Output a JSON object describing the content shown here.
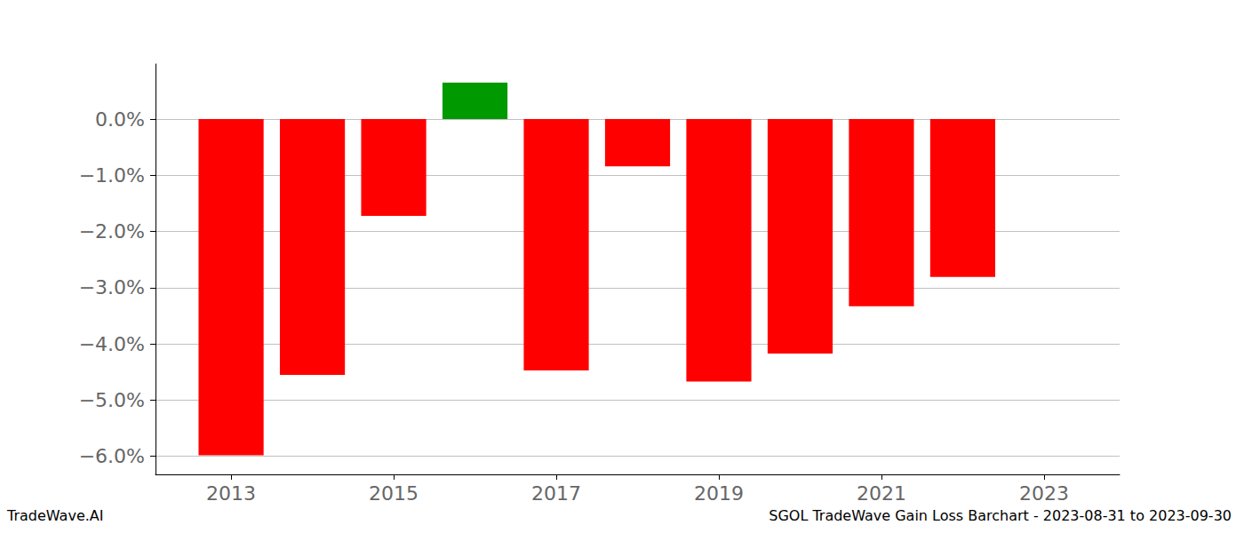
{
  "chart_data": {
    "type": "bar",
    "title": "SGOL TradeWave Gain Loss Barchart - 2023-08-31 to 2023-09-30",
    "annotations": [
      "TradeWave.AI"
    ],
    "x": [
      2013,
      2014,
      2015,
      2016,
      2017,
      2018,
      2019,
      2020,
      2021,
      2022
    ],
    "values": [
      -5.98,
      -4.55,
      -1.72,
      0.65,
      -4.47,
      -0.84,
      -4.67,
      -4.17,
      -3.33,
      -2.81
    ],
    "colors": [
      "#ff0000",
      "#ff0000",
      "#ff0000",
      "#009900",
      "#ff0000",
      "#ff0000",
      "#ff0000",
      "#ff0000",
      "#ff0000",
      "#ff0000"
    ],
    "xlim": [
      2012.07,
      2023.93
    ],
    "xticks": [
      2013,
      2015,
      2017,
      2019,
      2021,
      2023
    ],
    "ylim": [
      -6.32,
      0.98
    ],
    "yticks": [
      {
        "value": 0,
        "label": "0.0%"
      },
      {
        "value": -1,
        "label": "−1.0%"
      },
      {
        "value": -2,
        "label": "−2.0%"
      },
      {
        "value": -3,
        "label": "−3.0%"
      },
      {
        "value": -4,
        "label": "−4.0%"
      },
      {
        "value": -5,
        "label": "−5.0%"
      },
      {
        "value": -6,
        "label": "−6.0%"
      }
    ],
    "grid": true
  }
}
